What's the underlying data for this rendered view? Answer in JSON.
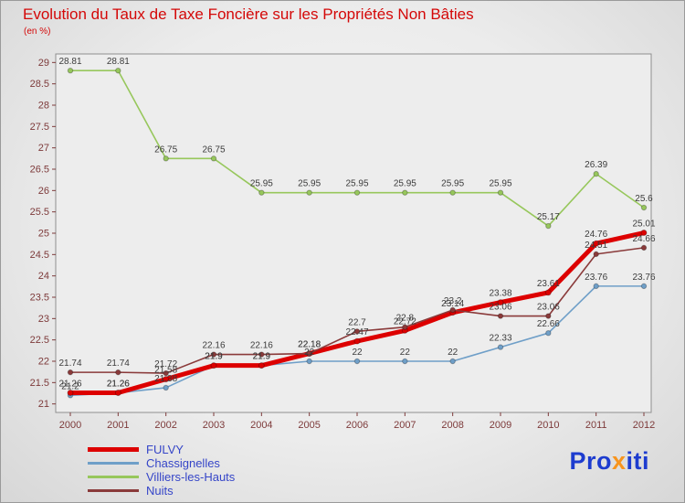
{
  "header": {
    "title": "Evolution du Taux de Taxe Foncière sur les Propriétés Non Bâties",
    "subtitle": "(en %)"
  },
  "chart_data": {
    "type": "line",
    "title": "Evolution du Taux de Taxe Foncière sur les Propriétés Non Bâties",
    "unit": "en %",
    "categories": [
      "2000",
      "2001",
      "2002",
      "2003",
      "2004",
      "2005",
      "2006",
      "2007",
      "2008",
      "2009",
      "2010",
      "2011",
      "2012"
    ],
    "series": [
      {
        "name": "FULVY",
        "color": "#dd0000",
        "line_width": 5,
        "values": [
          21.26,
          21.26,
          21.58,
          21.9,
          21.9,
          22.18,
          22.47,
          22.72,
          23.14,
          23.38,
          23.61,
          24.76,
          25.01
        ]
      },
      {
        "name": "Chassignelles",
        "color": "#6f9fc8",
        "line_width": 1.6,
        "values": [
          21.2,
          21.26,
          21.38,
          21.9,
          21.9,
          22,
          22,
          22,
          22,
          22.33,
          22.66,
          23.76,
          23.76
        ]
      },
      {
        "name": "Villiers-les-Hauts",
        "color": "#97c75c",
        "line_width": 1.6,
        "values": [
          28.81,
          28.81,
          26.75,
          26.75,
          25.95,
          25.95,
          25.95,
          25.95,
          25.95,
          25.95,
          25.17,
          26.39,
          25.6
        ]
      },
      {
        "name": "Nuits",
        "color": "#8a3a3a",
        "line_width": 1.6,
        "values": [
          21.74,
          21.74,
          21.72,
          22.16,
          22.16,
          22.18,
          22.7,
          22.8,
          23.2,
          23.06,
          23.06,
          24.51,
          24.66
        ]
      }
    ],
    "ylim": [
      21,
      29
    ],
    "ytick_step": 0.5,
    "xlabel": "",
    "ylabel": "",
    "grid": false,
    "legend_position": "bottom-left",
    "axis_color": "#7d3a3a",
    "label_color": "#3c3c3c",
    "plot_bg": "#ededed",
    "plot_border": "#8f8f8f"
  },
  "logo": {
    "parts": [
      {
        "text": "Pro",
        "color": "#1d3ccf"
      },
      {
        "text": "x",
        "color": "#f7941d"
      },
      {
        "text": "iti",
        "color": "#1d3ccf"
      }
    ]
  }
}
